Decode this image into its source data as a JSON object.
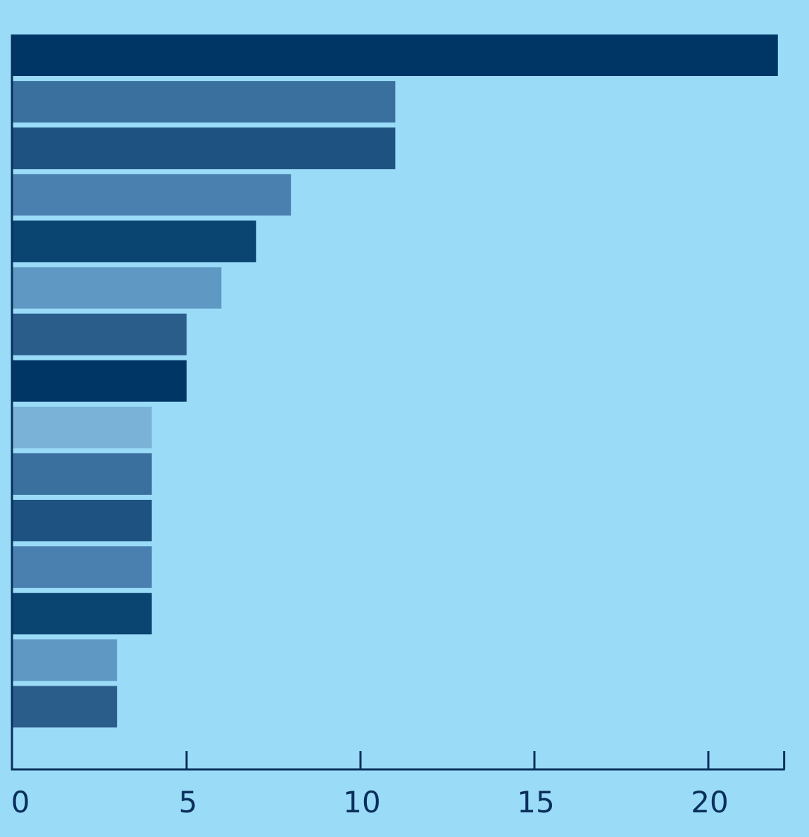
{
  "chart_data": {
    "type": "bar",
    "orientation": "horizontal",
    "title": "",
    "xlabel": "",
    "ylabel": "",
    "xlim": [
      0,
      22.2
    ],
    "xticks": [
      "0",
      "5",
      "10",
      "15",
      "20"
    ],
    "grid": false,
    "legend": "none",
    "values": [
      22,
      11,
      11,
      8,
      7,
      6,
      5,
      5,
      4,
      4,
      4,
      4,
      4,
      3,
      3
    ],
    "colors": [
      "#003665",
      "#3a709e",
      "#1e5281",
      "#4a80b0",
      "#0a4572",
      "#5f98c2",
      "#2b5d8a",
      "#003665",
      "#79b2d6",
      "#3a709e",
      "#1e5281",
      "#4a80b0",
      "#0a4572",
      "#5f98c2",
      "#2b5d8a"
    ],
    "axis_color": "#0a2f5c",
    "tick_label_color": "#0a2f5c",
    "background": "#9adbf7"
  }
}
